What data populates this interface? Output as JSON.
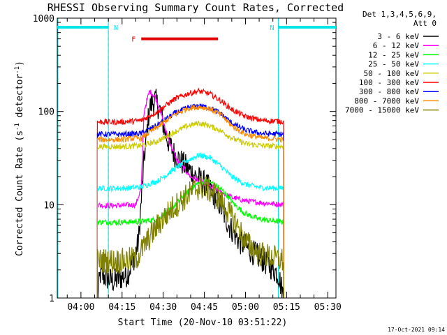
{
  "chart_data": {
    "type": "line",
    "title": "RHESSI Observing Summary Count Rates, Corrected",
    "xlabel": "Start Time (20-Nov-10 03:51:22)",
    "ylabel": "Corrected Count Rate (s⁻¹ detector⁻¹)",
    "ylabel_parts": {
      "main": "Corrected Count Rate (s",
      "sup1": "-1",
      "mid": " detector",
      "sup2": "-1",
      "end": ")"
    },
    "y_scale": "log",
    "ylim": [
      1,
      1000
    ],
    "xlim": [
      "03:51:22",
      "05:33:00"
    ],
    "x_ticks": [
      "04:00",
      "04:15",
      "04:30",
      "04:45",
      "05:00",
      "05:15",
      "05:30"
    ],
    "y_ticks": [
      "1",
      "10",
      "100",
      "1000"
    ],
    "timestamp": "17-Oct-2021 09:14",
    "legend_header": [
      "Det 1,3,4,5,6,9,",
      "Att 0"
    ],
    "legend_placement": "right",
    "annotations": [
      {
        "label": "N",
        "kind": "night",
        "color": "#00e5e5",
        "from": "03:51:22",
        "to": "04:10",
        "level": 800
      },
      {
        "label": "N",
        "kind": "night",
        "color": "#00e5e5",
        "from": "05:12",
        "to": "05:33",
        "level": 800
      },
      {
        "label": "F",
        "kind": "flare",
        "color": "#e00000",
        "from": "04:22",
        "to": "04:50",
        "level": 600
      }
    ],
    "series": [
      {
        "name": "3 - 6 keV",
        "color": "#000000",
        "points": [
          [
            "04:06",
            1
          ],
          [
            "04:07",
            1.8
          ],
          [
            "04:10",
            1.6
          ],
          [
            "04:12",
            1.5
          ],
          [
            "04:17",
            1.8
          ],
          [
            "04:19",
            2.5
          ],
          [
            "04:21",
            4
          ],
          [
            "04:23",
            30
          ],
          [
            "04:25",
            110
          ],
          [
            "04:27",
            135
          ],
          [
            "04:29",
            100
          ],
          [
            "04:31",
            55
          ],
          [
            "04:34",
            35
          ],
          [
            "04:38",
            26
          ],
          [
            "04:42",
            20
          ],
          [
            "04:46",
            16
          ],
          [
            "04:50",
            11
          ],
          [
            "04:54",
            6
          ],
          [
            "04:58",
            4
          ],
          [
            "05:02",
            3.2
          ],
          [
            "05:06",
            2.6
          ],
          [
            "05:09",
            2.2
          ],
          [
            "05:12",
            1.8
          ],
          [
            "05:14",
            1
          ]
        ]
      },
      {
        "name": "6 - 12 keV",
        "color": "#ff00ff",
        "points": [
          [
            "04:06",
            10
          ],
          [
            "04:08",
            9.8
          ],
          [
            "04:15",
            9.8
          ],
          [
            "04:20",
            10
          ],
          [
            "04:22",
            15
          ],
          [
            "04:23",
            100
          ],
          [
            "04:25",
            165
          ],
          [
            "04:27",
            145
          ],
          [
            "04:29",
            100
          ],
          [
            "04:31",
            60
          ],
          [
            "04:35",
            30
          ],
          [
            "04:40",
            20
          ],
          [
            "04:45",
            17
          ],
          [
            "04:50",
            14
          ],
          [
            "04:55",
            12
          ],
          [
            "05:00",
            11
          ],
          [
            "05:06",
            10.5
          ],
          [
            "05:14",
            10
          ]
        ]
      },
      {
        "name": "12 - 25 keV",
        "color": "#00ff00",
        "points": [
          [
            "04:06",
            6.5
          ],
          [
            "04:15",
            6.5
          ],
          [
            "04:22",
            6.6
          ],
          [
            "04:28",
            7
          ],
          [
            "04:33",
            9
          ],
          [
            "04:38",
            13
          ],
          [
            "04:42",
            16.5
          ],
          [
            "04:45",
            18
          ],
          [
            "04:48",
            17
          ],
          [
            "04:52",
            14
          ],
          [
            "04:56",
            10
          ],
          [
            "05:00",
            8
          ],
          [
            "05:05",
            7
          ],
          [
            "05:14",
            6.5
          ]
        ]
      },
      {
        "name": "25 - 50 keV",
        "color": "#00ffff",
        "points": [
          [
            "04:06",
            15
          ],
          [
            "04:15",
            15
          ],
          [
            "04:22",
            15.5
          ],
          [
            "04:28",
            18
          ],
          [
            "04:34",
            24
          ],
          [
            "04:39",
            30
          ],
          [
            "04:43",
            34
          ],
          [
            "04:47",
            32
          ],
          [
            "04:51",
            26
          ],
          [
            "04:55",
            20
          ],
          [
            "05:00",
            16.5
          ],
          [
            "05:06",
            15.2
          ],
          [
            "05:14",
            15
          ]
        ]
      },
      {
        "name": "50 - 100 keV",
        "color": "#cccc00",
        "points": [
          [
            "04:06",
            42
          ],
          [
            "04:15",
            42
          ],
          [
            "04:22",
            43
          ],
          [
            "04:28",
            48
          ],
          [
            "04:34",
            60
          ],
          [
            "04:39",
            70
          ],
          [
            "04:43",
            75
          ],
          [
            "04:47",
            70
          ],
          [
            "04:51",
            62
          ],
          [
            "04:55",
            52
          ],
          [
            "05:00",
            45
          ],
          [
            "05:06",
            43
          ],
          [
            "05:14",
            42
          ]
        ]
      },
      {
        "name": "100 - 300 keV",
        "color": "#ff0000",
        "points": [
          [
            "04:06",
            77
          ],
          [
            "04:15",
            77
          ],
          [
            "04:22",
            80
          ],
          [
            "04:28",
            100
          ],
          [
            "04:34",
            135
          ],
          [
            "04:39",
            155
          ],
          [
            "04:43",
            165
          ],
          [
            "04:47",
            155
          ],
          [
            "04:51",
            130
          ],
          [
            "04:55",
            105
          ],
          [
            "05:00",
            88
          ],
          [
            "05:06",
            80
          ],
          [
            "05:14",
            78
          ]
        ]
      },
      {
        "name": "300 - 800 keV",
        "color": "#0000ff",
        "points": [
          [
            "04:06",
            57
          ],
          [
            "04:15",
            57
          ],
          [
            "04:22",
            58
          ],
          [
            "04:28",
            72
          ],
          [
            "04:34",
            95
          ],
          [
            "04:39",
            110
          ],
          [
            "04:43",
            115
          ],
          [
            "04:47",
            110
          ],
          [
            "04:51",
            95
          ],
          [
            "04:55",
            75
          ],
          [
            "05:00",
            63
          ],
          [
            "05:06",
            58
          ],
          [
            "05:14",
            57
          ]
        ]
      },
      {
        "name": "800 - 7000 keV",
        "color": "#ff8c00",
        "points": [
          [
            "04:06",
            50
          ],
          [
            "04:15",
            50
          ],
          [
            "04:22",
            52
          ],
          [
            "04:28",
            68
          ],
          [
            "04:34",
            92
          ],
          [
            "04:39",
            108
          ],
          [
            "04:43",
            112
          ],
          [
            "04:47",
            107
          ],
          [
            "04:51",
            92
          ],
          [
            "04:55",
            70
          ],
          [
            "05:00",
            57
          ],
          [
            "05:06",
            52
          ],
          [
            "05:14",
            50
          ]
        ]
      },
      {
        "name": "7000 - 15000 keV",
        "color": "#808000",
        "points": [
          [
            "04:06",
            2.5
          ],
          [
            "04:15",
            2.5
          ],
          [
            "04:20",
            2.6
          ],
          [
            "04:24",
            4
          ],
          [
            "04:28",
            6
          ],
          [
            "04:33",
            9
          ],
          [
            "04:38",
            12
          ],
          [
            "04:42",
            15
          ],
          [
            "04:45",
            15.5
          ],
          [
            "04:49",
            13
          ],
          [
            "04:53",
            9
          ],
          [
            "04:57",
            6
          ],
          [
            "05:00",
            4
          ],
          [
            "05:05",
            3
          ],
          [
            "05:14",
            2.5
          ]
        ]
      }
    ]
  }
}
